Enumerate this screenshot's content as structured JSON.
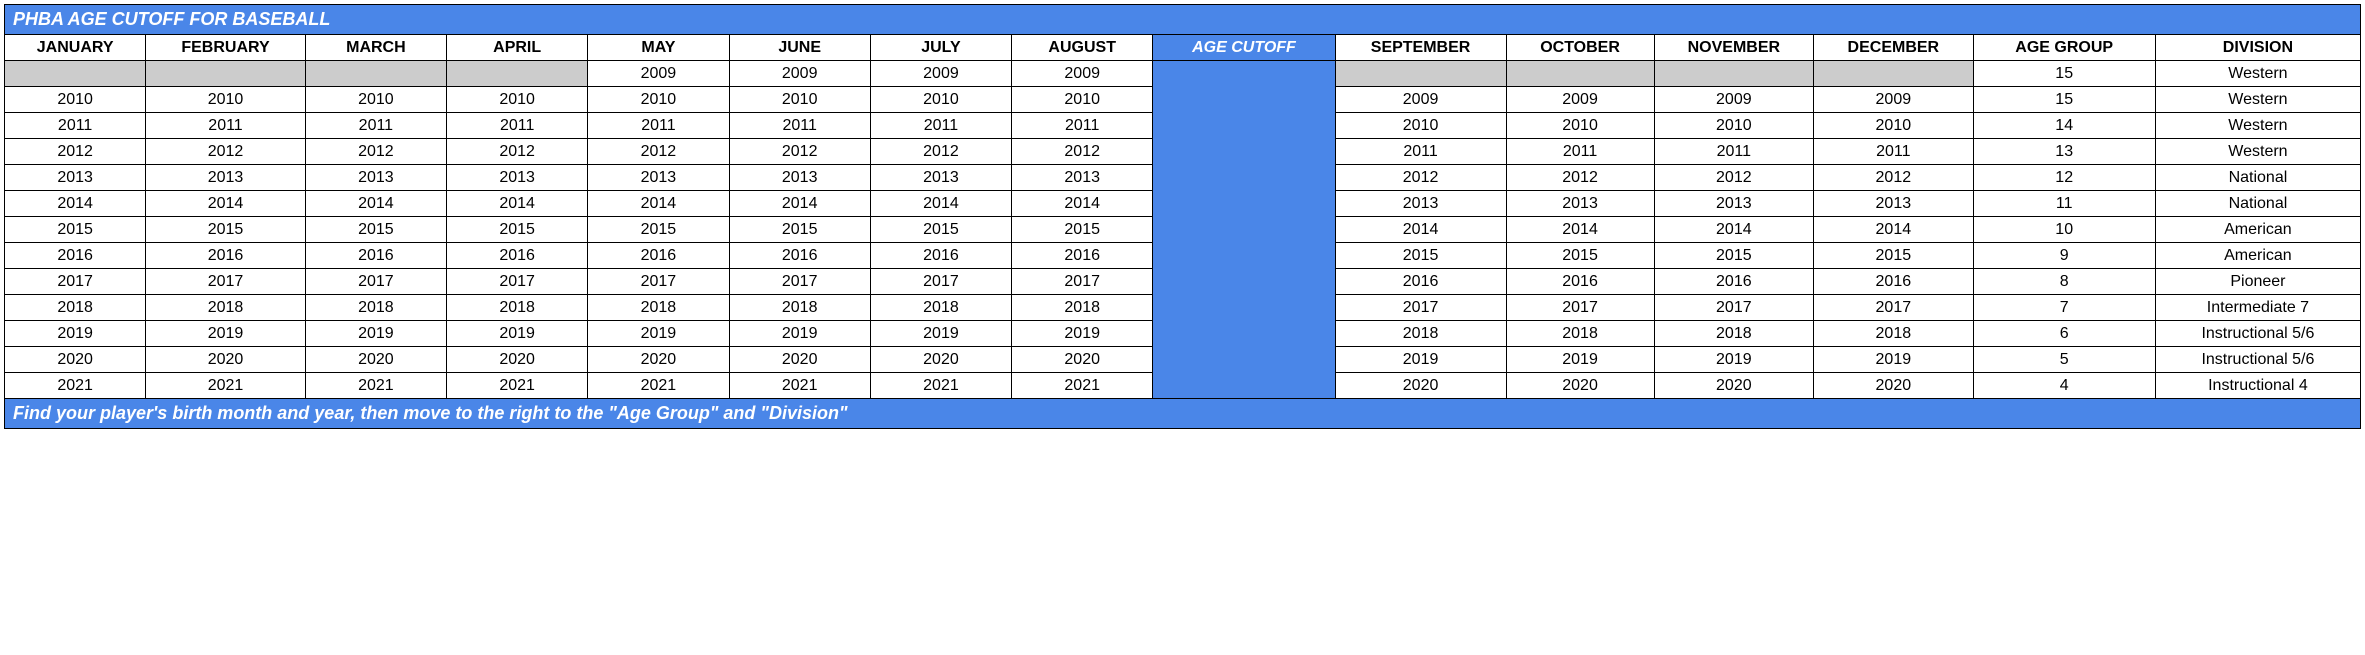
{
  "title": "PHBA AGE CUTOFF FOR BASEBALL",
  "footer": "Find your player's birth month and year, then move to the right to the \"Age Group\" and \"Division\"",
  "columns": [
    "JANUARY",
    "FEBRUARY",
    "MARCH",
    "APRIL",
    "MAY",
    "JUNE",
    "JULY",
    "AUGUST",
    "AGE CUTOFF",
    "SEPTEMBER",
    "OCTOBER",
    "NOVEMBER",
    "DECEMBER",
    "AGE GROUP",
    "DIVISION"
  ],
  "rows": [
    {
      "jan": "",
      "feb": "",
      "mar": "",
      "apr": "",
      "may": "2009",
      "jun": "2009",
      "jul": "2009",
      "aug": "2009",
      "sep": "",
      "oct": "",
      "nov": "",
      "dec": "",
      "age": "15",
      "div": "Western",
      "grey_left": true,
      "grey_right": true
    },
    {
      "jan": "2010",
      "feb": "2010",
      "mar": "2010",
      "apr": "2010",
      "may": "2010",
      "jun": "2010",
      "jul": "2010",
      "aug": "2010",
      "sep": "2009",
      "oct": "2009",
      "nov": "2009",
      "dec": "2009",
      "age": "15",
      "div": "Western"
    },
    {
      "jan": "2011",
      "feb": "2011",
      "mar": "2011",
      "apr": "2011",
      "may": "2011",
      "jun": "2011",
      "jul": "2011",
      "aug": "2011",
      "sep": "2010",
      "oct": "2010",
      "nov": "2010",
      "dec": "2010",
      "age": "14",
      "div": "Western"
    },
    {
      "jan": "2012",
      "feb": "2012",
      "mar": "2012",
      "apr": "2012",
      "may": "2012",
      "jun": "2012",
      "jul": "2012",
      "aug": "2012",
      "sep": "2011",
      "oct": "2011",
      "nov": "2011",
      "dec": "2011",
      "age": "13",
      "div": "Western"
    },
    {
      "jan": "2013",
      "feb": "2013",
      "mar": "2013",
      "apr": "2013",
      "may": "2013",
      "jun": "2013",
      "jul": "2013",
      "aug": "2013",
      "sep": "2012",
      "oct": "2012",
      "nov": "2012",
      "dec": "2012",
      "age": "12",
      "div": "National"
    },
    {
      "jan": "2014",
      "feb": "2014",
      "mar": "2014",
      "apr": "2014",
      "may": "2014",
      "jun": "2014",
      "jul": "2014",
      "aug": "2014",
      "sep": "2013",
      "oct": "2013",
      "nov": "2013",
      "dec": "2013",
      "age": "11",
      "div": "National"
    },
    {
      "jan": "2015",
      "feb": "2015",
      "mar": "2015",
      "apr": "2015",
      "may": "2015",
      "jun": "2015",
      "jul": "2015",
      "aug": "2015",
      "sep": "2014",
      "oct": "2014",
      "nov": "2014",
      "dec": "2014",
      "age": "10",
      "div": "American"
    },
    {
      "jan": "2016",
      "feb": "2016",
      "mar": "2016",
      "apr": "2016",
      "may": "2016",
      "jun": "2016",
      "jul": "2016",
      "aug": "2016",
      "sep": "2015",
      "oct": "2015",
      "nov": "2015",
      "dec": "2015",
      "age": "9",
      "div": "American"
    },
    {
      "jan": "2017",
      "feb": "2017",
      "mar": "2017",
      "apr": "2017",
      "may": "2017",
      "jun": "2017",
      "jul": "2017",
      "aug": "2017",
      "sep": "2016",
      "oct": "2016",
      "nov": "2016",
      "dec": "2016",
      "age": "8",
      "div": "Pioneer"
    },
    {
      "jan": "2018",
      "feb": "2018",
      "mar": "2018",
      "apr": "2018",
      "may": "2018",
      "jun": "2018",
      "jul": "2018",
      "aug": "2018",
      "sep": "2017",
      "oct": "2017",
      "nov": "2017",
      "dec": "2017",
      "age": "7",
      "div": "Intermediate 7"
    },
    {
      "jan": "2019",
      "feb": "2019",
      "mar": "2019",
      "apr": "2019",
      "may": "2019",
      "jun": "2019",
      "jul": "2019",
      "aug": "2019",
      "sep": "2018",
      "oct": "2018",
      "nov": "2018",
      "dec": "2018",
      "age": "6",
      "div": "Instructional 5/6"
    },
    {
      "jan": "2020",
      "feb": "2020",
      "mar": "2020",
      "apr": "2020",
      "may": "2020",
      "jun": "2020",
      "jul": "2020",
      "aug": "2020",
      "sep": "2019",
      "oct": "2019",
      "nov": "2019",
      "dec": "2019",
      "age": "5",
      "div": "Instructional 5/6"
    },
    {
      "jan": "2021",
      "feb": "2021",
      "mar": "2021",
      "apr": "2021",
      "may": "2021",
      "jun": "2021",
      "jul": "2021",
      "aug": "2021",
      "sep": "2020",
      "oct": "2020",
      "nov": "2020",
      "dec": "2020",
      "age": "4",
      "div": "Instructional 4"
    }
  ],
  "colors": {
    "accent": "#4a86e8",
    "grey": "#cccccc",
    "border": "#000000",
    "text_on_accent": "#ffffff"
  }
}
